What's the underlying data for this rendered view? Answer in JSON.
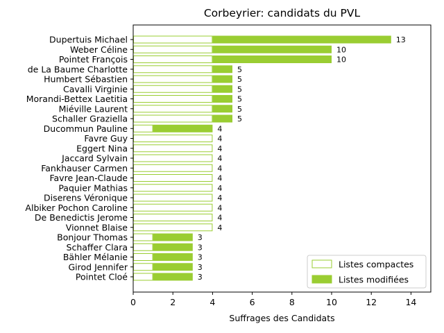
{
  "chart_data": {
    "type": "bar",
    "orientation": "horizontal",
    "stacked": true,
    "title": "Corbeyrier: candidats du PVL",
    "xlabel": "Suffrages des Candidats",
    "ylabel": "",
    "xlim": [
      0,
      15
    ],
    "xticks": [
      0,
      2,
      4,
      6,
      8,
      10,
      12,
      14
    ],
    "grid": false,
    "legend_position": "lower right",
    "categories": [
      "Dupertuis Michael",
      "Weber Céline",
      "Pointet François",
      "de La Baume Charlotte",
      "Humbert Sébastien",
      "Cavalli Virginie",
      "Morandi-Bettex Laetitia",
      "Miéville Laurent",
      "Schaller Graziella",
      "Ducommun Pauline",
      "Favre Guy",
      "Eggert Nina",
      "Jaccard Sylvain",
      "Fankhauser Carmen",
      "Favre Jean-Claude",
      "Paquier Mathias",
      "Diserens Véronique",
      "Albiker Pochon Caroline",
      "De Benedictis Jerome",
      "Vionnet Blaise",
      "Bonjour Thomas",
      "Schaffer Clara",
      "Bähler Mélanie",
      "Girod Jennifer",
      "Pointet Cloé"
    ],
    "series": [
      {
        "name": "Listes compactes",
        "style": "outline",
        "color": "#9acd32",
        "values": [
          4,
          4,
          4,
          4,
          4,
          4,
          4,
          4,
          4,
          1,
          4,
          4,
          4,
          4,
          4,
          4,
          4,
          4,
          4,
          4,
          1,
          1,
          1,
          1,
          1
        ]
      },
      {
        "name": "Listes modifiées",
        "style": "filled",
        "color": "#9acd32",
        "values": [
          9,
          6,
          6,
          1,
          1,
          1,
          1,
          1,
          1,
          3,
          0,
          0,
          0,
          0,
          0,
          0,
          0,
          0,
          0,
          0,
          2,
          2,
          2,
          2,
          2
        ]
      }
    ],
    "totals": [
      13,
      10,
      10,
      5,
      5,
      5,
      5,
      5,
      5,
      4,
      4,
      4,
      4,
      4,
      4,
      4,
      4,
      4,
      4,
      4,
      3,
      3,
      3,
      3,
      3
    ]
  }
}
